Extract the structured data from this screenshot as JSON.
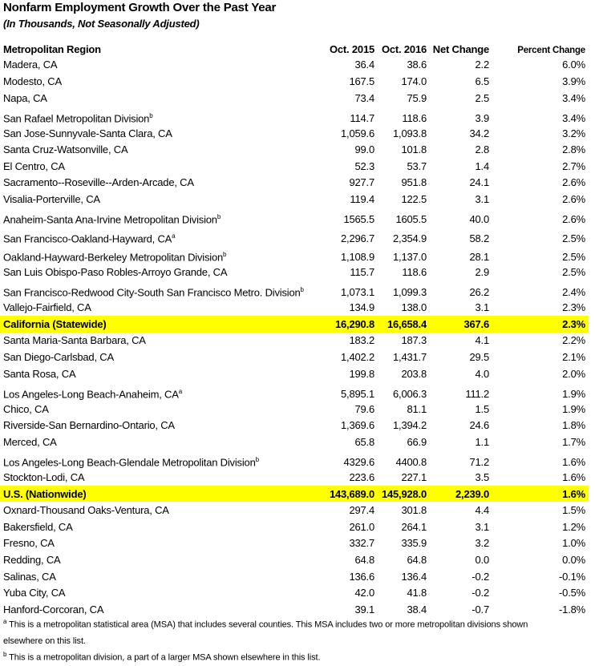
{
  "title": "Nonfarm Employment Growth Over the Past Year",
  "subtitle": "(In Thousands, Not Seasonally Adjusted)",
  "columns": [
    "Metropolitan Region",
    "Oct. 2015",
    "Oct. 2016",
    "Net Change",
    "Percent Change"
  ],
  "highlight_color": "#ffff00",
  "rows": [
    {
      "region": "Madera, CA",
      "sup": "",
      "v2015": "36.4",
      "v2016": "38.6",
      "net": "2.2",
      "pct": "6.0%"
    },
    {
      "region": "Modesto, CA",
      "sup": "",
      "v2015": "167.5",
      "v2016": "174.0",
      "net": "6.5",
      "pct": "3.9%"
    },
    {
      "region": "Napa, CA",
      "sup": "",
      "v2015": "73.4",
      "v2016": "75.9",
      "net": "2.5",
      "pct": "3.4%"
    },
    {
      "region": "San Rafael Metropolitan Division",
      "sup": "b",
      "v2015": "114.7",
      "v2016": "118.6",
      "net": "3.9",
      "pct": "3.4%"
    },
    {
      "region": "San Jose-Sunnyvale-Santa Clara, CA",
      "sup": "",
      "v2015": "1,059.6",
      "v2016": "1,093.8",
      "net": "34.2",
      "pct": "3.2%"
    },
    {
      "region": "Santa Cruz-Watsonville, CA",
      "sup": "",
      "v2015": "99.0",
      "v2016": "101.8",
      "net": "2.8",
      "pct": "2.8%"
    },
    {
      "region": "El Centro, CA",
      "sup": "",
      "v2015": "52.3",
      "v2016": "53.7",
      "net": "1.4",
      "pct": "2.7%"
    },
    {
      "region": "Sacramento--Roseville--Arden-Arcade, CA",
      "sup": "",
      "v2015": "927.7",
      "v2016": "951.8",
      "net": "24.1",
      "pct": "2.6%"
    },
    {
      "region": "Visalia-Porterville, CA",
      "sup": "",
      "v2015": "119.4",
      "v2016": "122.5",
      "net": "3.1",
      "pct": "2.6%"
    },
    {
      "region": "Anaheim-Santa Ana-Irvine Metropolitan Division",
      "sup": "b",
      "v2015": "1565.5",
      "v2016": "1605.5",
      "net": "40.0",
      "pct": "2.6%"
    },
    {
      "region": "San Francisco-Oakland-Hayward, CA",
      "sup": "a",
      "v2015": "2,296.7",
      "v2016": "2,354.9",
      "net": "58.2",
      "pct": "2.5%"
    },
    {
      "region": "Oakland-Hayward-Berkeley Metropolitan Division",
      "sup": "b",
      "v2015": "1,108.9",
      "v2016": "1,137.0",
      "net": "28.1",
      "pct": "2.5%"
    },
    {
      "region": "San Luis Obispo-Paso Robles-Arroyo Grande, CA",
      "sup": "",
      "v2015": "115.7",
      "v2016": "118.6",
      "net": "2.9",
      "pct": "2.5%"
    },
    {
      "region": "San Francisco-Redwood City-South San Francisco Metro. Division",
      "sup": "b",
      "v2015": "1,073.1",
      "v2016": "1,099.3",
      "net": "26.2",
      "pct": "2.4%"
    },
    {
      "region": "Vallejo-Fairfield, CA",
      "sup": "",
      "v2015": "134.9",
      "v2016": "138.0",
      "net": "3.1",
      "pct": "2.3%"
    },
    {
      "region": "California (Statewide)",
      "sup": "",
      "v2015": "16,290.8",
      "v2016": "16,658.4",
      "net": "367.6",
      "pct": "2.3%",
      "highlight": true
    },
    {
      "region": "Santa Maria-Santa Barbara, CA",
      "sup": "",
      "v2015": "183.2",
      "v2016": "187.3",
      "net": "4.1",
      "pct": "2.2%"
    },
    {
      "region": "San Diego-Carlsbad, CA",
      "sup": "",
      "v2015": "1,402.2",
      "v2016": "1,431.7",
      "net": "29.5",
      "pct": "2.1%"
    },
    {
      "region": "Santa Rosa, CA",
      "sup": "",
      "v2015": "199.8",
      "v2016": "203.8",
      "net": "4.0",
      "pct": "2.0%"
    },
    {
      "region": "Los Angeles-Long Beach-Anaheim, CA",
      "sup": "a",
      "v2015": "5,895.1",
      "v2016": "6,006.3",
      "net": "111.2",
      "pct": "1.9%"
    },
    {
      "region": "Chico, CA",
      "sup": "",
      "v2015": "79.6",
      "v2016": "81.1",
      "net": "1.5",
      "pct": "1.9%"
    },
    {
      "region": "Riverside-San Bernardino-Ontario, CA",
      "sup": "",
      "v2015": "1,369.6",
      "v2016": "1,394.2",
      "net": "24.6",
      "pct": "1.8%"
    },
    {
      "region": "Merced, CA",
      "sup": "",
      "v2015": "65.8",
      "v2016": "66.9",
      "net": "1.1",
      "pct": "1.7%"
    },
    {
      "region": "Los Angeles-Long Beach-Glendale Metropolitan Division",
      "sup": "b",
      "v2015": "4329.6",
      "v2016": "4400.8",
      "net": "71.2",
      "pct": "1.6%"
    },
    {
      "region": "Stockton-Lodi, CA",
      "sup": "",
      "v2015": "223.6",
      "v2016": "227.1",
      "net": "3.5",
      "pct": "1.6%"
    },
    {
      "region": "U.S. (Nationwide)",
      "sup": "",
      "v2015": "143,689.0",
      "v2016": "145,928.0",
      "net": "2,239.0",
      "pct": "1.6%",
      "highlight": true
    },
    {
      "region": "Oxnard-Thousand Oaks-Ventura, CA",
      "sup": "",
      "v2015": "297.4",
      "v2016": "301.8",
      "net": "4.4",
      "pct": "1.5%"
    },
    {
      "region": "Bakersfield, CA",
      "sup": "",
      "v2015": "261.0",
      "v2016": "264.1",
      "net": "3.1",
      "pct": "1.2%"
    },
    {
      "region": "Fresno, CA",
      "sup": "",
      "v2015": "332.7",
      "v2016": "335.9",
      "net": "3.2",
      "pct": "1.0%"
    },
    {
      "region": "Redding, CA",
      "sup": "",
      "v2015": "64.8",
      "v2016": "64.8",
      "net": "0.0",
      "pct": "0.0%"
    },
    {
      "region": "Salinas, CA",
      "sup": "",
      "v2015": "136.6",
      "v2016": "136.4",
      "net": "-0.2",
      "pct": "-0.1%"
    },
    {
      "region": "Yuba City, CA",
      "sup": "",
      "v2015": "42.0",
      "v2016": "41.8",
      "net": "-0.2",
      "pct": "-0.5%"
    },
    {
      "region": "Hanford-Corcoran, CA",
      "sup": "",
      "v2015": "39.1",
      "v2016": "38.4",
      "net": "-0.7",
      "pct": "-1.8%"
    }
  ],
  "footnotes": [
    {
      "mark": "a",
      "text": "This is a metropolitan statistical area (MSA) that includes several counties. This MSA includes two or more metropolitan divisions shown elsewhere on this list."
    },
    {
      "mark": "b",
      "text": "This is a metropolitan division, a part of a larger MSA shown elsewhere in this list."
    }
  ]
}
